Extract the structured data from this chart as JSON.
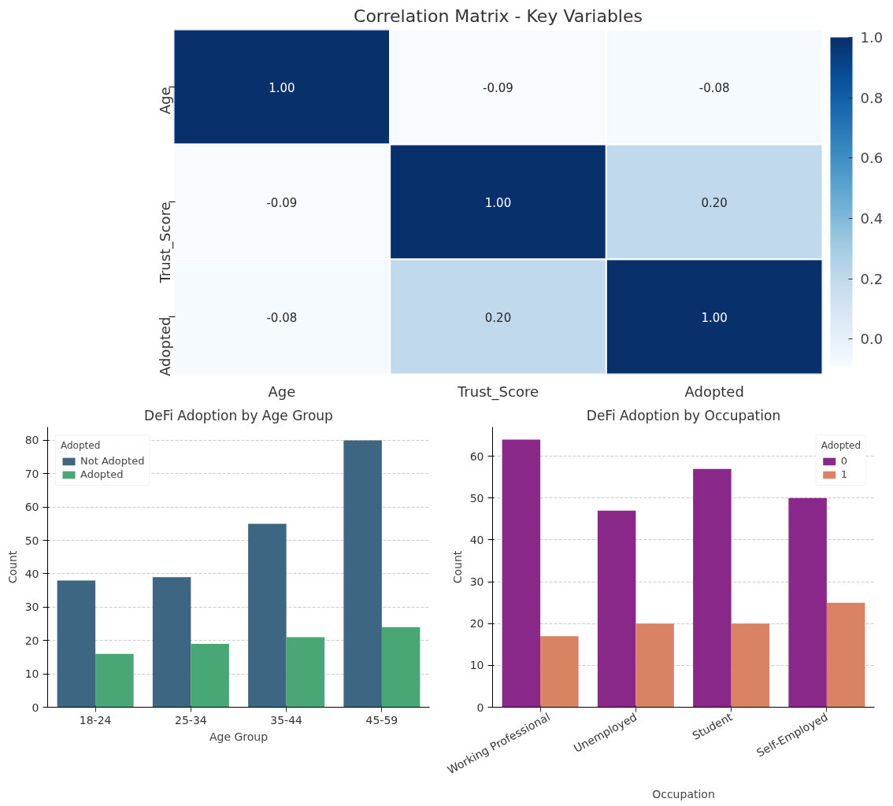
{
  "chart_data": [
    {
      "type": "heatmap",
      "title": "Correlation Matrix - Key Variables",
      "categories": [
        "Age",
        "Trust_Score",
        "Adopted"
      ],
      "y_categories": [
        "Age",
        "Trust_Score",
        "Adopted"
      ],
      "cells": [
        [
          1.0,
          -0.09,
          -0.08
        ],
        [
          -0.09,
          1.0,
          0.2
        ],
        [
          -0.08,
          0.2,
          1.0
        ]
      ],
      "cell_labels": [
        [
          "1.00",
          "-0.09",
          "-0.08"
        ],
        [
          "-0.09",
          "1.00",
          "0.20"
        ],
        [
          "-0.08",
          "0.20",
          "1.00"
        ]
      ],
      "clim": [
        -0.09,
        1.0
      ],
      "cticks": [
        {
          "value": 0,
          "label": "0.0"
        },
        {
          "value": 0.2,
          "label": "0.2"
        },
        {
          "value": 0.4,
          "label": "0.4"
        },
        {
          "value": 0.6,
          "label": "0.6"
        },
        {
          "value": 0.8,
          "label": "0.8"
        },
        {
          "value": 1,
          "label": "1.0"
        }
      ]
    },
    {
      "type": "bar",
      "title": "DeFi Adoption by Age Group",
      "xlabel": "Age Group",
      "ylabel": "Count",
      "legend_title": "Adopted",
      "categories": [
        "18-24",
        "25-34",
        "35-44",
        "45-59"
      ],
      "series": [
        {
          "name": "Not Adopted",
          "color": "#3d6682",
          "values": [
            38,
            39,
            55,
            80
          ]
        },
        {
          "name": "Adopted",
          "color": "#48a775",
          "values": [
            16,
            19,
            21,
            24
          ]
        }
      ],
      "ylim": [
        0,
        84
      ],
      "yticks": [
        0,
        10,
        20,
        30,
        40,
        50,
        60,
        70,
        80
      ],
      "grid": "y",
      "legend": "top left"
    },
    {
      "type": "bar",
      "title": "DeFi Adoption by Occupation",
      "xlabel": "Occupation",
      "ylabel": "Count",
      "legend_title": "Adopted",
      "categories": [
        "Working Professional",
        "Unemployed",
        "Student",
        "Self-Employed"
      ],
      "series": [
        {
          "name": "0",
          "color": "#8a288a",
          "values": [
            64,
            47,
            57,
            50
          ]
        },
        {
          "name": "1",
          "color": "#d98264",
          "values": [
            17,
            20,
            20,
            25
          ]
        }
      ],
      "ylim": [
        0,
        67
      ],
      "yticks": [
        0,
        10,
        20,
        30,
        40,
        50,
        60
      ],
      "grid": "y",
      "legend": "top right"
    }
  ]
}
